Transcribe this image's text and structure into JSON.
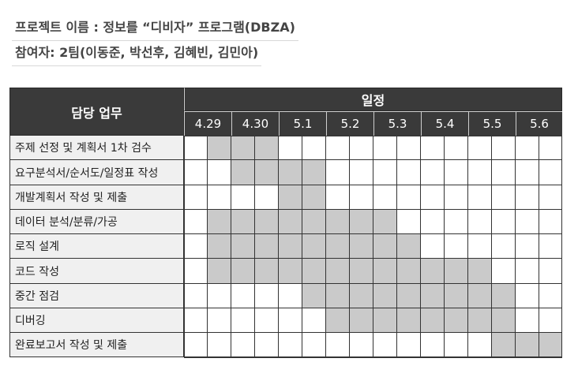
{
  "project": {
    "title_line": "프로젝트 이름 : 정보를 “디비자” 프로그램(DBZA)",
    "participants_line": "참여자: 2팀(이동준, 박선후, 김혜빈, 김민아)"
  },
  "table": {
    "task_header": "담당 업무",
    "schedule_header": "일정",
    "dates": [
      "4.29",
      "4.30",
      "5.1",
      "5.2",
      "5.3",
      "5.4",
      "5.5",
      "5.6"
    ],
    "tasks": [
      {
        "label": "주제 선정 및 계획서 1차 검수",
        "start": 1,
        "end": 3
      },
      {
        "label": "요구분석서/순서도/일정표 작성",
        "start": 2,
        "end": 5
      },
      {
        "label": "개발계획서 작성 및 제출",
        "start": 4,
        "end": 5
      },
      {
        "label": "데이터 분석/분류/가공",
        "start": 1,
        "end": 8
      },
      {
        "label": "로직 설계",
        "start": 1,
        "end": 9
      },
      {
        "label": "코드 작성",
        "start": 1,
        "end": 12
      },
      {
        "label": "중간 점검",
        "start": 5,
        "end": 13
      },
      {
        "label": "디버깅",
        "start": 6,
        "end": 13
      },
      {
        "label": "완료보고서 작성 및 제출",
        "start": 13,
        "end": 15
      }
    ]
  },
  "colors": {
    "header_bg": "#3a3a3a",
    "filled_cell": "#cacaca",
    "label_bg": "#f0f0f0"
  }
}
